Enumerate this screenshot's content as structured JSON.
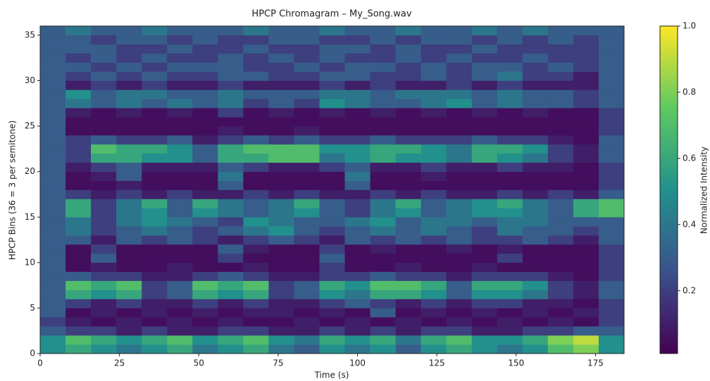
{
  "chart_data": {
    "type": "heatmap",
    "title": "HPCP Chromagram – My_Song.wav",
    "xlabel": "Time (s)",
    "ylabel": "HPCP Bins (36 = 3 per semitone)",
    "colorbar_label": "Normalized Intensity",
    "colormap": "viridis",
    "x": [
      0,
      8,
      16,
      24,
      32,
      40,
      48,
      56,
      64,
      72,
      80,
      88,
      96,
      104,
      112,
      120,
      128,
      136,
      144,
      152,
      160,
      168,
      176,
      184
    ],
    "y": [
      0,
      1,
      2,
      3,
      4,
      5,
      6,
      7,
      8,
      9,
      10,
      11,
      12,
      13,
      14,
      15,
      16,
      17,
      18,
      19,
      20,
      21,
      22,
      23,
      24,
      25,
      26,
      27,
      28,
      29,
      30,
      31,
      32,
      33,
      34,
      35,
      36
    ],
    "xlim": [
      0,
      184
    ],
    "ylim": [
      0,
      36
    ],
    "xticks": [
      0,
      25,
      50,
      75,
      100,
      125,
      150,
      175
    ],
    "yticks": [
      0,
      5,
      10,
      15,
      20,
      25,
      30,
      35
    ],
    "clim": [
      0.01,
      1
    ],
    "cticks": [
      0.2,
      0.4,
      0.6,
      0.8,
      {
        "value": 1,
        "label": "1.0"
      }
    ],
    "z": [
      [
        0.5,
        0.6,
        0.5,
        0.4,
        0.5,
        0.6,
        0.4,
        0.5,
        0.6,
        0.4,
        0.3,
        0.5,
        0.4,
        0.5,
        0.3,
        0.5,
        0.6,
        0.5,
        0.4,
        0.5,
        0.7,
        0.8,
        0.5
      ],
      [
        0.5,
        0.7,
        0.6,
        0.5,
        0.6,
        0.7,
        0.5,
        0.6,
        0.7,
        0.5,
        0.4,
        0.6,
        0.5,
        0.6,
        0.4,
        0.6,
        0.7,
        0.5,
        0.5,
        0.6,
        0.8,
        0.9,
        0.5
      ],
      [
        0.3,
        0.2,
        0.2,
        0.1,
        0.2,
        0.1,
        0.1,
        0.2,
        0.2,
        0.1,
        0.1,
        0.2,
        0.1,
        0.2,
        0.1,
        0.2,
        0.2,
        0.1,
        0.1,
        0.2,
        0.2,
        0.3,
        0.3
      ],
      [
        0.2,
        0.1,
        0.05,
        0.1,
        0.05,
        0.1,
        0.05,
        0.1,
        0.05,
        0.05,
        0.1,
        0.05,
        0.1,
        0.05,
        0.1,
        0.05,
        0.1,
        0.05,
        0.1,
        0.05,
        0.1,
        0.05,
        0.2
      ],
      [
        0.3,
        0.05,
        0.1,
        0.05,
        0.1,
        0.05,
        0.1,
        0.05,
        0.1,
        0.1,
        0.05,
        0.1,
        0.05,
        0.3,
        0.05,
        0.1,
        0.05,
        0.1,
        0.05,
        0.1,
        0.05,
        0.1,
        0.2
      ],
      [
        0.3,
        0.2,
        0.1,
        0.2,
        0.1,
        0.1,
        0.2,
        0.1,
        0.2,
        0.1,
        0.1,
        0.2,
        0.3,
        0.2,
        0.1,
        0.2,
        0.1,
        0.2,
        0.2,
        0.1,
        0.1,
        0.05,
        0.2
      ],
      [
        0.3,
        0.6,
        0.5,
        0.6,
        0.2,
        0.3,
        0.6,
        0.5,
        0.6,
        0.2,
        0.3,
        0.5,
        0.4,
        0.6,
        0.6,
        0.5,
        0.3,
        0.5,
        0.5,
        0.4,
        0.2,
        0.1,
        0.3
      ],
      [
        0.3,
        0.7,
        0.6,
        0.7,
        0.2,
        0.3,
        0.7,
        0.6,
        0.7,
        0.2,
        0.3,
        0.6,
        0.5,
        0.7,
        0.7,
        0.6,
        0.3,
        0.6,
        0.6,
        0.5,
        0.2,
        0.1,
        0.3
      ],
      [
        0.3,
        0.3,
        0.2,
        0.2,
        0.1,
        0.1,
        0.2,
        0.3,
        0.2,
        0.1,
        0.1,
        0.2,
        0.2,
        0.3,
        0.2,
        0.2,
        0.1,
        0.2,
        0.2,
        0.2,
        0.1,
        0.05,
        0.2
      ],
      [
        0.3,
        0.05,
        0.1,
        0.05,
        0.05,
        0.1,
        0.05,
        0.05,
        0.1,
        0.05,
        0.05,
        0.2,
        0.05,
        0.05,
        0.1,
        0.05,
        0.05,
        0.1,
        0.05,
        0.05,
        0.05,
        0.05,
        0.2
      ],
      [
        0.3,
        0.05,
        0.3,
        0.05,
        0.05,
        0.05,
        0.05,
        0.2,
        0.05,
        0.05,
        0.05,
        0.3,
        0.05,
        0.05,
        0.05,
        0.05,
        0.05,
        0.05,
        0.2,
        0.05,
        0.05,
        0.05,
        0.2
      ],
      [
        0.3,
        0.05,
        0.2,
        0.05,
        0.05,
        0.05,
        0.05,
        0.3,
        0.1,
        0.05,
        0.05,
        0.2,
        0.05,
        0.1,
        0.05,
        0.05,
        0.1,
        0.05,
        0.1,
        0.05,
        0.05,
        0.05,
        0.2
      ],
      [
        0.3,
        0.3,
        0.1,
        0.3,
        0.2,
        0.3,
        0.2,
        0.1,
        0.2,
        0.3,
        0.2,
        0.1,
        0.3,
        0.2,
        0.3,
        0.2,
        0.3,
        0.2,
        0.2,
        0.3,
        0.2,
        0.1,
        0.3
      ],
      [
        0.3,
        0.4,
        0.2,
        0.3,
        0.4,
        0.3,
        0.2,
        0.3,
        0.4,
        0.5,
        0.3,
        0.2,
        0.3,
        0.4,
        0.3,
        0.4,
        0.3,
        0.2,
        0.4,
        0.3,
        0.3,
        0.2,
        0.3
      ],
      [
        0.3,
        0.4,
        0.2,
        0.4,
        0.5,
        0.4,
        0.3,
        0.2,
        0.5,
        0.4,
        0.3,
        0.3,
        0.4,
        0.5,
        0.3,
        0.4,
        0.4,
        0.3,
        0.4,
        0.4,
        0.3,
        0.3,
        0.3
      ],
      [
        0.3,
        0.6,
        0.2,
        0.4,
        0.5,
        0.3,
        0.5,
        0.4,
        0.3,
        0.4,
        0.5,
        0.3,
        0.2,
        0.4,
        0.5,
        0.3,
        0.4,
        0.5,
        0.5,
        0.4,
        0.3,
        0.6,
        0.7
      ],
      [
        0.3,
        0.6,
        0.2,
        0.4,
        0.6,
        0.3,
        0.6,
        0.4,
        0.3,
        0.4,
        0.6,
        0.3,
        0.2,
        0.4,
        0.6,
        0.3,
        0.4,
        0.5,
        0.6,
        0.4,
        0.3,
        0.6,
        0.7
      ],
      [
        0.3,
        0.2,
        0.1,
        0.2,
        0.1,
        0.2,
        0.1,
        0.1,
        0.2,
        0.1,
        0.2,
        0.1,
        0.1,
        0.2,
        0.1,
        0.2,
        0.1,
        0.1,
        0.2,
        0.1,
        0.2,
        0.1,
        0.3
      ],
      [
        0.3,
        0.05,
        0.05,
        0.1,
        0.05,
        0.05,
        0.05,
        0.3,
        0.05,
        0.05,
        0.05,
        0.05,
        0.3,
        0.05,
        0.05,
        0.05,
        0.05,
        0.05,
        0.05,
        0.05,
        0.05,
        0.05,
        0.2
      ],
      [
        0.3,
        0.05,
        0.1,
        0.3,
        0.05,
        0.05,
        0.05,
        0.4,
        0.05,
        0.05,
        0.05,
        0.05,
        0.4,
        0.05,
        0.05,
        0.1,
        0.05,
        0.05,
        0.05,
        0.05,
        0.05,
        0.05,
        0.2
      ],
      [
        0.3,
        0.1,
        0.2,
        0.3,
        0.1,
        0.1,
        0.1,
        0.3,
        0.2,
        0.1,
        0.1,
        0.2,
        0.3,
        0.1,
        0.1,
        0.2,
        0.1,
        0.1,
        0.2,
        0.1,
        0.1,
        0.05,
        0.2
      ],
      [
        0.3,
        0.2,
        0.6,
        0.6,
        0.5,
        0.5,
        0.3,
        0.6,
        0.6,
        0.7,
        0.7,
        0.4,
        0.5,
        0.6,
        0.5,
        0.5,
        0.4,
        0.6,
        0.5,
        0.4,
        0.2,
        0.1,
        0.3
      ],
      [
        0.3,
        0.2,
        0.7,
        0.6,
        0.6,
        0.5,
        0.3,
        0.6,
        0.7,
        0.7,
        0.7,
        0.5,
        0.5,
        0.6,
        0.6,
        0.5,
        0.4,
        0.6,
        0.6,
        0.5,
        0.2,
        0.1,
        0.3
      ],
      [
        0.3,
        0.2,
        0.3,
        0.2,
        0.2,
        0.3,
        0.1,
        0.2,
        0.3,
        0.2,
        0.3,
        0.2,
        0.2,
        0.3,
        0.2,
        0.2,
        0.2,
        0.3,
        0.2,
        0.2,
        0.1,
        0.05,
        0.3
      ],
      [
        0.3,
        0.05,
        0.05,
        0.05,
        0.05,
        0.05,
        0.05,
        0.1,
        0.05,
        0.05,
        0.1,
        0.05,
        0.05,
        0.05,
        0.05,
        0.05,
        0.05,
        0.05,
        0.05,
        0.05,
        0.05,
        0.05,
        0.2
      ],
      [
        0.3,
        0.05,
        0.05,
        0.05,
        0.05,
        0.05,
        0.05,
        0.05,
        0.05,
        0.05,
        0.05,
        0.05,
        0.05,
        0.05,
        0.05,
        0.05,
        0.05,
        0.05,
        0.05,
        0.05,
        0.05,
        0.05,
        0.2
      ],
      [
        0.3,
        0.1,
        0.05,
        0.1,
        0.05,
        0.1,
        0.05,
        0.2,
        0.05,
        0.1,
        0.05,
        0.1,
        0.05,
        0.1,
        0.05,
        0.1,
        0.05,
        0.1,
        0.05,
        0.1,
        0.05,
        0.05,
        0.2
      ],
      [
        0.3,
        0.4,
        0.3,
        0.4,
        0.3,
        0.4,
        0.3,
        0.4,
        0.2,
        0.3,
        0.2,
        0.5,
        0.4,
        0.3,
        0.3,
        0.4,
        0.5,
        0.3,
        0.4,
        0.3,
        0.3,
        0.2,
        0.3
      ],
      [
        0.3,
        0.5,
        0.3,
        0.4,
        0.4,
        0.3,
        0.3,
        0.4,
        0.3,
        0.3,
        0.3,
        0.4,
        0.4,
        0.3,
        0.4,
        0.4,
        0.4,
        0.3,
        0.4,
        0.3,
        0.3,
        0.2,
        0.3
      ],
      [
        0.3,
        0.1,
        0.2,
        0.1,
        0.2,
        0.1,
        0.1,
        0.2,
        0.1,
        0.1,
        0.1,
        0.2,
        0.1,
        0.2,
        0.1,
        0.1,
        0.2,
        0.1,
        0.2,
        0.1,
        0.1,
        0.1,
        0.3
      ],
      [
        0.3,
        0.2,
        0.3,
        0.2,
        0.3,
        0.2,
        0.2,
        0.3,
        0.3,
        0.2,
        0.2,
        0.3,
        0.3,
        0.2,
        0.2,
        0.3,
        0.2,
        0.3,
        0.4,
        0.2,
        0.2,
        0.1,
        0.3
      ],
      [
        0.3,
        0.3,
        0.2,
        0.3,
        0.2,
        0.3,
        0.3,
        0.3,
        0.2,
        0.2,
        0.3,
        0.2,
        0.3,
        0.3,
        0.2,
        0.3,
        0.2,
        0.3,
        0.3,
        0.2,
        0.3,
        0.2,
        0.3
      ],
      [
        0.3,
        0.2,
        0.3,
        0.2,
        0.3,
        0.2,
        0.2,
        0.3,
        0.2,
        0.3,
        0.2,
        0.3,
        0.2,
        0.2,
        0.3,
        0.2,
        0.3,
        0.2,
        0.2,
        0.3,
        0.2,
        0.2,
        0.3
      ],
      [
        0.3,
        0.3,
        0.3,
        0.2,
        0.2,
        0.3,
        0.2,
        0.2,
        0.3,
        0.2,
        0.2,
        0.3,
        0.3,
        0.2,
        0.3,
        0.2,
        0.2,
        0.3,
        0.2,
        0.2,
        0.2,
        0.2,
        0.3
      ],
      [
        0.3,
        0.3,
        0.2,
        0.3,
        0.3,
        0.2,
        0.3,
        0.2,
        0.2,
        0.3,
        0.3,
        0.2,
        0.2,
        0.3,
        0.2,
        0.3,
        0.3,
        0.2,
        0.3,
        0.2,
        0.3,
        0.2,
        0.3
      ],
      [
        0.3,
        0.4,
        0.3,
        0.3,
        0.4,
        0.3,
        0.3,
        0.3,
        0.4,
        0.3,
        0.3,
        0.4,
        0.3,
        0.3,
        0.4,
        0.3,
        0.3,
        0.4,
        0.3,
        0.4,
        0.3,
        0.3,
        0.3
      ]
    ]
  }
}
